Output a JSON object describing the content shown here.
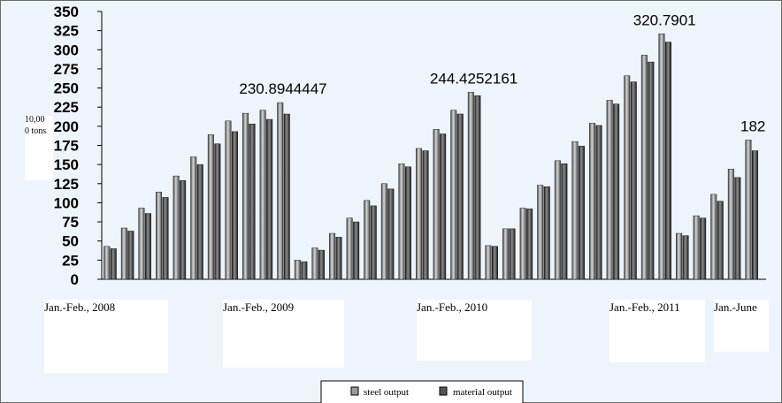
{
  "chart_data": {
    "type": "bar",
    "y_unit_label": "10,000 tons",
    "ylim": [
      0,
      350
    ],
    "y_ticks": [
      0,
      25,
      50,
      75,
      100,
      125,
      150,
      175,
      200,
      225,
      250,
      275,
      300,
      325,
      350
    ],
    "grid": false,
    "legend_position": "bottom",
    "period_labels": [
      "Jan.-Feb., 2008",
      "Jan.-Feb., 2009",
      "Jan.-Feb., 2010",
      "Jan.-Feb., 2011",
      "Jan.-June"
    ],
    "period_start_index": [
      0,
      11,
      22,
      33,
      40
    ],
    "series": [
      {
        "name": "steel output",
        "color": "#9a9a9a",
        "values": [
          43,
          67,
          93,
          114,
          135,
          160,
          189,
          207,
          217,
          221,
          230.8944447,
          25,
          41,
          60,
          80,
          103,
          125,
          151,
          171,
          196,
          221,
          244.4252161,
          44,
          66,
          93,
          123,
          155,
          180,
          204,
          234,
          266,
          293,
          320.7901,
          60,
          83,
          111,
          144,
          182
        ]
      },
      {
        "name": "material output",
        "color": "#555555",
        "values": [
          40,
          63,
          86,
          107,
          129,
          150,
          177,
          193,
          203,
          209,
          216,
          23,
          38,
          55,
          75,
          96,
          118,
          147,
          168,
          190,
          216,
          240,
          43,
          66,
          92,
          121,
          151,
          174,
          201,
          229,
          258,
          284,
          310,
          57,
          80,
          102,
          133,
          168
        ]
      }
    ],
    "annotations": [
      {
        "text": "230.8944447",
        "index": 10
      },
      {
        "text": "244.4252161",
        "index": 21
      },
      {
        "text": "320.7901",
        "index": 32
      },
      {
        "text": "182",
        "index": 37
      }
    ]
  },
  "colors": {
    "background": "#eef4fb",
    "axis": "#000000",
    "label_box": "#ffffff"
  }
}
